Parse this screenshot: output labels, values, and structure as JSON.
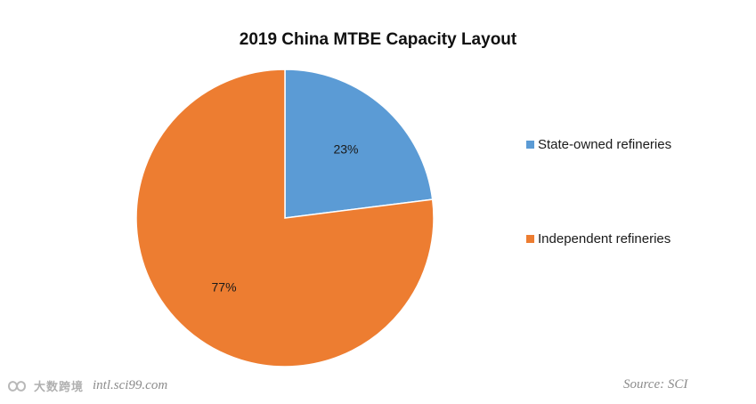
{
  "chart_data": {
    "type": "pie",
    "title": "2019 China MTBE Capacity Layout",
    "slices": [
      {
        "label": "State-owned refineries",
        "value": 23,
        "display": "23%",
        "color": "#5b9bd5"
      },
      {
        "label": "Independent refineries",
        "value": 77,
        "display": "77%",
        "color": "#ed7d31"
      }
    ],
    "legend_position": "right"
  },
  "footer": {
    "logo_text": "大数跨境",
    "website": "intl.sci99.com",
    "source": "Source: SCI"
  }
}
